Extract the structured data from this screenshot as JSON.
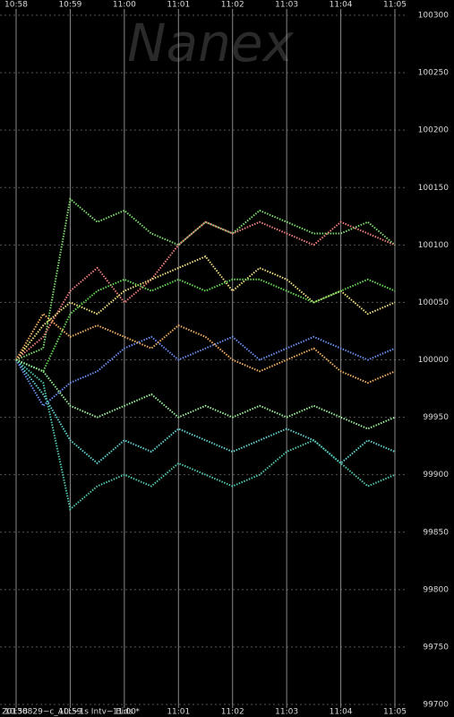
{
  "chart_data": {
    "type": "line",
    "watermark": "Nanex",
    "footer": "20130829~c_ALL~1s Intv~ Bids *",
    "x": [
      658,
      658.5,
      659,
      659.5,
      660,
      660.5,
      661,
      661.5,
      662,
      662.5,
      663,
      663.5,
      664,
      664.5,
      665
    ],
    "xlim": [
      658,
      665
    ],
    "xticks": [
      {
        "value": 658,
        "label": "10:58"
      },
      {
        "value": 659,
        "label": "10:59"
      },
      {
        "value": 660,
        "label": "11:00"
      },
      {
        "value": 661,
        "label": "11:01"
      },
      {
        "value": 662,
        "label": "11:02"
      },
      {
        "value": 663,
        "label": "11:03"
      },
      {
        "value": 664,
        "label": "11:04"
      },
      {
        "value": 665,
        "label": "11:05"
      }
    ],
    "ylim": [
      99700,
      100300
    ],
    "yticks": [
      99700,
      99750,
      99800,
      99850,
      99900,
      99950,
      100000,
      100050,
      100100,
      100150,
      100200,
      100250,
      100300
    ],
    "grid": true,
    "series": [
      {
        "color": "#7fdc6e",
        "values": [
          100000,
          100010,
          100140,
          100120,
          100130,
          100110,
          100100,
          100120,
          100110,
          100130,
          100120,
          100110,
          100110,
          100120,
          100100
        ]
      },
      {
        "color": "#f08080",
        "values": [
          100000,
          100020,
          100060,
          100080,
          100050,
          100070,
          100100,
          100120,
          100110,
          100120,
          100110,
          100100,
          100120,
          100110,
          100100
        ]
      },
      {
        "color": "#f0e080",
        "values": [
          100000,
          100030,
          100050,
          100040,
          100060,
          100070,
          100080,
          100090,
          100060,
          100080,
          100070,
          100050,
          100060,
          100040,
          100050
        ]
      },
      {
        "color": "#66d855",
        "values": [
          100000,
          99990,
          100040,
          100060,
          100070,
          100060,
          100070,
          100060,
          100070,
          100070,
          100060,
          100050,
          100060,
          100070,
          100060
        ]
      },
      {
        "color": "#60d0d0",
        "values": [
          100000,
          99970,
          99930,
          99910,
          99930,
          99920,
          99940,
          99930,
          99920,
          99930,
          99940,
          99930,
          99910,
          99930,
          99920
        ]
      },
      {
        "color": "#6a8ff0",
        "values": [
          100000,
          99960,
          99980,
          99990,
          100010,
          100020,
          100000,
          100010,
          100020,
          100000,
          100010,
          100020,
          100010,
          100000,
          100010
        ]
      },
      {
        "color": "#f0b060",
        "values": [
          100000,
          100040,
          100020,
          100030,
          100020,
          100010,
          100030,
          100020,
          100000,
          99990,
          100000,
          100010,
          99990,
          99980,
          99990
        ]
      },
      {
        "color": "#50c8b0",
        "values": [
          100000,
          99980,
          99870,
          99890,
          99900,
          99890,
          99910,
          99900,
          99890,
          99900,
          99920,
          99930,
          99910,
          99890,
          99900
        ]
      },
      {
        "color": "#9cf09c",
        "values": [
          100000,
          99990,
          99960,
          99950,
          99960,
          99970,
          99950,
          99960,
          99950,
          99960,
          99950,
          99960,
          99950,
          99940,
          99950
        ]
      }
    ]
  }
}
